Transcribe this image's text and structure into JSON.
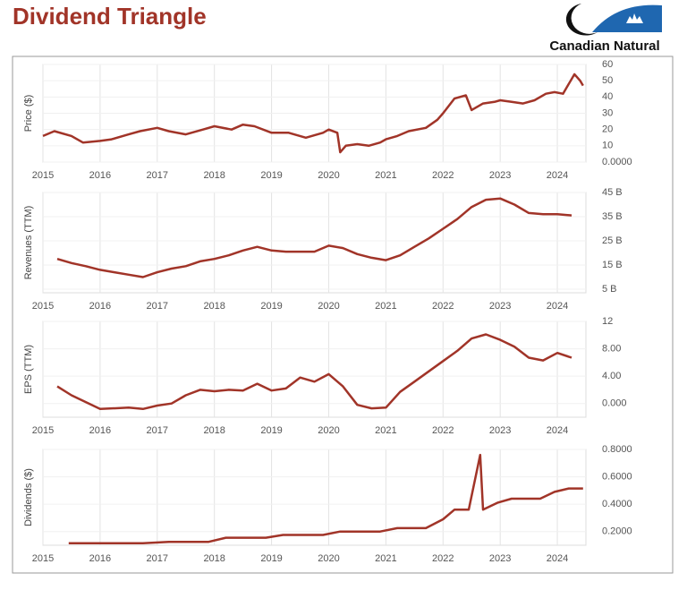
{
  "header": {
    "title": "Dividend Triangle",
    "logo_text": "Canadian Natural"
  },
  "chart_data": [
    {
      "type": "line",
      "y_label": "Price ($)",
      "color": "#a13428",
      "grid": true,
      "xlim": [
        2015,
        2024.5
      ],
      "xticks": [
        2015,
        2016,
        2017,
        2018,
        2019,
        2020,
        2021,
        2022,
        2023,
        2024
      ],
      "ylim": [
        0,
        60
      ],
      "yticks": [
        60,
        50,
        40,
        30,
        20,
        10,
        {
          "value": 0,
          "label": "0.0000"
        }
      ],
      "x": [
        2015.0,
        2015.2,
        2015.5,
        2015.7,
        2016.0,
        2016.2,
        2016.5,
        2016.7,
        2017.0,
        2017.2,
        2017.5,
        2017.8,
        2018.0,
        2018.3,
        2018.5,
        2018.7,
        2019.0,
        2019.3,
        2019.6,
        2019.9,
        2020.0,
        2020.15,
        2020.2,
        2020.3,
        2020.5,
        2020.7,
        2020.9,
        2021.0,
        2021.2,
        2021.4,
        2021.7,
        2021.9,
        2022.0,
        2022.2,
        2022.4,
        2022.5,
        2022.7,
        2022.9,
        2023.0,
        2023.2,
        2023.4,
        2023.6,
        2023.8,
        2023.95,
        2024.1,
        2024.2,
        2024.3,
        2024.4,
        2024.45
      ],
      "values": [
        16,
        19,
        16,
        12,
        13,
        14,
        17,
        19,
        21,
        19,
        17,
        20,
        22,
        20,
        23,
        22,
        18,
        18,
        15,
        18,
        20,
        18,
        6,
        10,
        11,
        10,
        12,
        14,
        16,
        19,
        21,
        26,
        30,
        39,
        41,
        32,
        36,
        37,
        38,
        37,
        36,
        38,
        42,
        43,
        42,
        48,
        54,
        50,
        47
      ]
    },
    {
      "type": "line",
      "y_label": "Revenues (TTM)",
      "color": "#a13428",
      "grid": true,
      "xlim": [
        2015,
        2024.5
      ],
      "xticks": [
        2015,
        2016,
        2017,
        2018,
        2019,
        2020,
        2021,
        2022,
        2023,
        2024
      ],
      "ylim": [
        3.5,
        45
      ],
      "yticks": [
        {
          "value": 45,
          "label": "45 B"
        },
        {
          "value": 35,
          "label": "35 B"
        },
        {
          "value": 25,
          "label": "25 B"
        },
        {
          "value": 15,
          "label": "15 B"
        },
        {
          "value": 5,
          "label": "5 B"
        }
      ],
      "x": [
        2015.25,
        2015.5,
        2015.75,
        2016,
        2016.25,
        2016.5,
        2016.75,
        2017,
        2017.25,
        2017.5,
        2017.75,
        2018,
        2018.25,
        2018.5,
        2018.75,
        2019,
        2019.25,
        2019.5,
        2019.75,
        2020,
        2020.25,
        2020.5,
        2020.75,
        2021,
        2021.25,
        2021.5,
        2021.75,
        2022,
        2022.25,
        2022.5,
        2022.75,
        2023,
        2023.25,
        2023.5,
        2023.75,
        2024,
        2024.25
      ],
      "values": [
        17.5,
        15.8,
        14.5,
        13,
        12,
        11,
        10,
        12,
        13.5,
        14.5,
        16.5,
        17.5,
        19,
        21,
        22.5,
        21,
        20.5,
        20.5,
        20.5,
        23,
        22,
        19.5,
        18,
        17,
        19,
        22.5,
        26,
        30,
        34,
        39,
        42,
        42.5,
        40,
        36.5,
        36,
        36,
        35.5
      ]
    },
    {
      "type": "line",
      "y_label": "EPS (TTM)",
      "color": "#a13428",
      "grid": true,
      "xlim": [
        2015,
        2024.5
      ],
      "xticks": [
        2015,
        2016,
        2017,
        2018,
        2019,
        2020,
        2021,
        2022,
        2023,
        2024
      ],
      "ylim": [
        -2,
        12
      ],
      "yticks": [
        12,
        {
          "value": 8,
          "label": "8.00"
        },
        {
          "value": 4,
          "label": "4.00"
        },
        {
          "value": 0,
          "label": "0.000"
        }
      ],
      "x": [
        2015.25,
        2015.5,
        2016,
        2016.5,
        2016.75,
        2017,
        2017.25,
        2017.5,
        2017.75,
        2018,
        2018.25,
        2018.5,
        2018.75,
        2019,
        2019.25,
        2019.5,
        2019.75,
        2020,
        2020.25,
        2020.5,
        2020.75,
        2021,
        2021.25,
        2021.5,
        2021.75,
        2022,
        2022.25,
        2022.5,
        2022.75,
        2023,
        2023.25,
        2023.5,
        2023.75,
        2024,
        2024.25
      ],
      "values": [
        2.5,
        1.2,
        -0.8,
        -0.6,
        -0.8,
        -0.3,
        0.0,
        1.2,
        2.0,
        1.8,
        2.0,
        1.9,
        2.9,
        1.9,
        2.2,
        3.8,
        3.2,
        4.3,
        2.5,
        -0.2,
        -0.7,
        -0.6,
        1.7,
        3.2,
        4.7,
        6.2,
        7.7,
        9.5,
        10.1,
        9.3,
        8.3,
        6.7,
        6.3,
        7.4,
        6.7
      ]
    },
    {
      "type": "line",
      "y_label": "Dividends ($)",
      "color": "#a13428",
      "grid": true,
      "xlim": [
        2015,
        2024.5
      ],
      "xticks": [
        2015,
        2016,
        2017,
        2018,
        2019,
        2020,
        2021,
        2022,
        2023,
        2024
      ],
      "ylim": [
        0.1,
        0.8
      ],
      "yticks": [
        {
          "value": 0.8,
          "label": "0.8000"
        },
        {
          "value": 0.6,
          "label": "0.6000"
        },
        {
          "value": 0.4,
          "label": "0.4000"
        },
        {
          "value": 0.2,
          "label": "0.2000"
        }
      ],
      "x": [
        2015.45,
        2016.75,
        2017.2,
        2017.5,
        2017.9,
        2018.2,
        2018.9,
        2019.2,
        2019.9,
        2020.2,
        2020.9,
        2021.2,
        2021.7,
        2022.0,
        2022.2,
        2022.45,
        2022.65,
        2022.7,
        2022.95,
        2023.2,
        2023.7,
        2023.95,
        2024.2,
        2024.45
      ],
      "values": [
        0.115,
        0.115,
        0.125,
        0.125,
        0.125,
        0.155,
        0.155,
        0.175,
        0.175,
        0.2,
        0.2,
        0.225,
        0.225,
        0.29,
        0.36,
        0.36,
        0.76,
        0.36,
        0.41,
        0.44,
        0.44,
        0.49,
        0.515,
        0.515
      ]
    }
  ]
}
